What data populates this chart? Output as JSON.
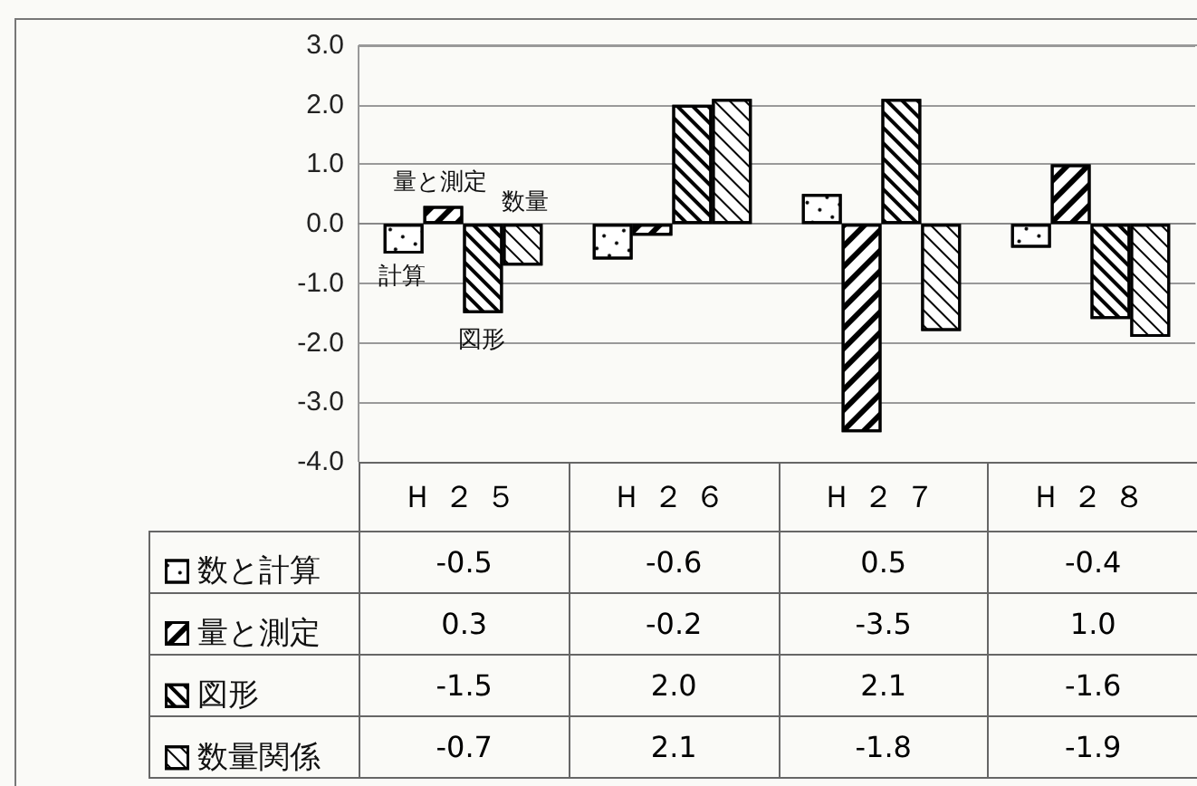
{
  "chart_data": {
    "type": "bar",
    "categories": [
      "Ｈ２５",
      "Ｈ２６",
      "Ｈ２７",
      "Ｈ２８"
    ],
    "series": [
      {
        "name": "数と計算",
        "color": "#000000",
        "values": [
          -0.5,
          -0.6,
          0.5,
          -0.4
        ],
        "value_labels": [
          "-0.5",
          "-0.6",
          "0.5",
          "-0.4"
        ]
      },
      {
        "name": "量と測定",
        "color": "#000000",
        "values": [
          0.3,
          -0.2,
          -3.5,
          1.0
        ],
        "value_labels": [
          "0.3",
          "-0.2",
          "-3.5",
          "1.0"
        ]
      },
      {
        "name": "図形",
        "color": "#000000",
        "values": [
          -1.5,
          2.0,
          2.1,
          -1.6
        ],
        "value_labels": [
          "-1.5",
          "2.0",
          "2.1",
          "-1.6"
        ]
      },
      {
        "name": "数量関係",
        "color": "#000000",
        "values": [
          -0.7,
          2.1,
          -1.8,
          -1.9
        ],
        "value_labels": [
          "-0.7",
          "2.1",
          "-1.8",
          "-1.9"
        ]
      }
    ],
    "ylim": [
      -4,
      3
    ],
    "yticks": [
      {
        "value": -4,
        "label": "-4.0"
      },
      {
        "value": -3,
        "label": "-3.0"
      },
      {
        "value": -2,
        "label": "-2.0"
      },
      {
        "value": -1,
        "label": "-1.0"
      },
      {
        "value": 0,
        "label": "0.0"
      },
      {
        "value": 1,
        "label": "1.0"
      },
      {
        "value": 2,
        "label": "2.0"
      },
      {
        "value": 3,
        "label": "3.0"
      }
    ],
    "annotations": [
      "計算",
      "量と測定",
      "数量",
      "図形"
    ],
    "grid": "y",
    "legend": "bottom"
  }
}
